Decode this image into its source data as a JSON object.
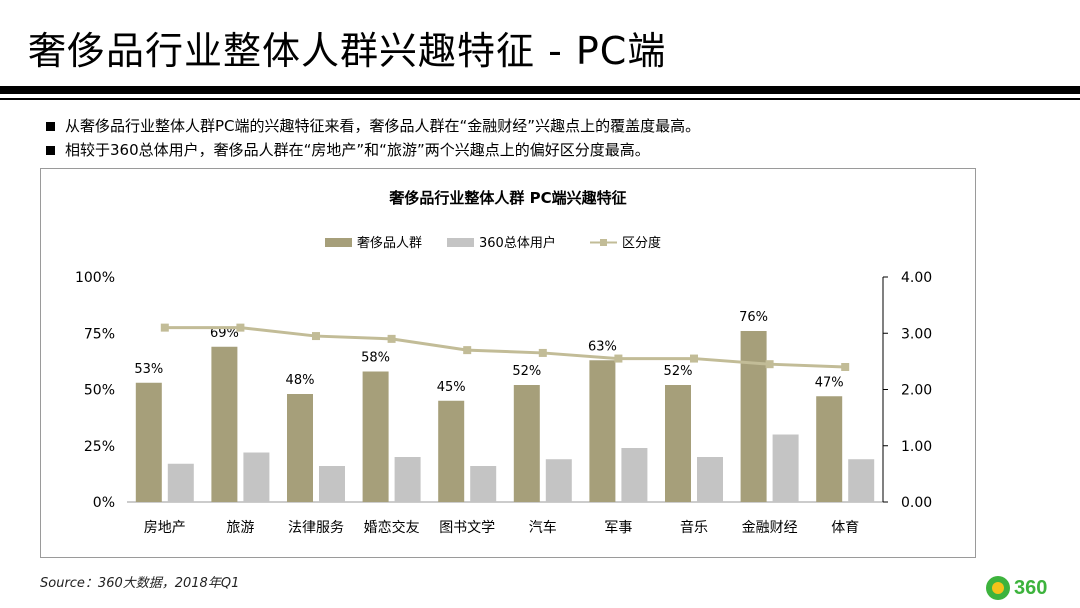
{
  "slide": {
    "title": "奢侈品行业整体人群兴趣特征 - PC端",
    "bullets": [
      "从奢侈品行业整体人群PC端的兴趣特征来看，奢侈品人群在“金融财经”兴趣点上的覆盖度最高。",
      "相较于360总体用户，奢侈品人群在“房地产”和“旅游”两个兴趣点上的偏好区分度最高。"
    ],
    "source": "Source：360大数据，2018年Q1",
    "logo_text": "360"
  },
  "colors": {
    "luxury": "#a69f7a",
    "overall": "#c4c4c4",
    "distinction": "#c2bc97"
  },
  "chart_data": {
    "type": "bar",
    "title": "奢侈品行业整体人群 PC端兴趣特征",
    "categories": [
      "房地产",
      "旅游",
      "法律服务",
      "婚恋交友",
      "图书文学",
      "汽车",
      "军事",
      "音乐",
      "金融财经",
      "体育"
    ],
    "series": [
      {
        "name": "奢侈品人群",
        "kind": "bar",
        "axis": "left",
        "values": [
          53,
          69,
          48,
          58,
          45,
          52,
          63,
          52,
          76,
          47
        ],
        "labels": [
          "53%",
          "69%",
          "48%",
          "58%",
          "45%",
          "52%",
          "63%",
          "52%",
          "76%",
          "47%"
        ]
      },
      {
        "name": "360总体用户",
        "kind": "bar",
        "axis": "left",
        "values": [
          17,
          22,
          16,
          20,
          16,
          19,
          24,
          20,
          30,
          19
        ]
      },
      {
        "name": "区分度",
        "kind": "line",
        "axis": "right",
        "values": [
          3.1,
          3.1,
          2.95,
          2.9,
          2.7,
          2.65,
          2.55,
          2.55,
          2.45,
          2.4
        ]
      }
    ],
    "y_left": {
      "ylim": [
        0,
        100
      ],
      "ticks": [
        "0%",
        "25%",
        "50%",
        "75%",
        "100%"
      ]
    },
    "y_right": {
      "ylim": [
        0,
        4
      ],
      "ticks": [
        "0.00",
        "1.00",
        "2.00",
        "3.00",
        "4.00"
      ]
    },
    "legend_position": "top",
    "grid": false
  }
}
